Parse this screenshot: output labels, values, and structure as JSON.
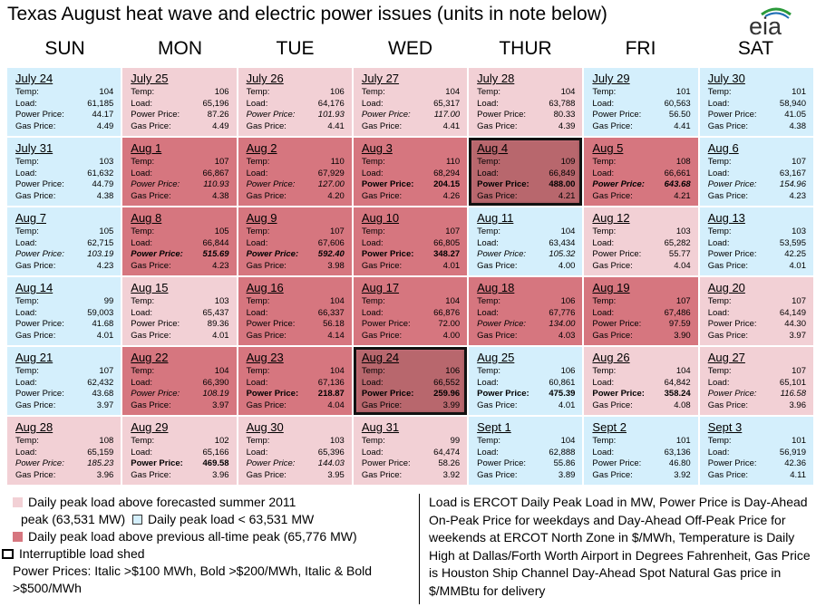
{
  "title": "Texas August heat wave and electric power issues (units in note below)",
  "logo": "eia",
  "days": [
    "SUN",
    "MON",
    "TUE",
    "WED",
    "THUR",
    "FRI",
    "SAT"
  ],
  "labels": {
    "temp": "Temp:",
    "load": "Load:",
    "power": "Power Price:",
    "gas": "Gas Price:"
  },
  "colors": {
    "below": "#d4effc",
    "above_forecast": "#f2d0d5",
    "above_record": "#d6767f",
    "load_shed": "#b8676d"
  },
  "cells": [
    {
      "date": "July 24",
      "shade": "b",
      "temp": "104",
      "load": "61,185",
      "power": "44.17",
      "pstyle": "n",
      "gas": "4.49"
    },
    {
      "date": "July 25",
      "shade": "p",
      "temp": "106",
      "load": "65,196",
      "power": "87.26",
      "pstyle": "n",
      "gas": "4.49"
    },
    {
      "date": "July 26",
      "shade": "p",
      "temp": "106",
      "load": "64,176",
      "power": "101.93",
      "pstyle": "i",
      "gas": "4.41"
    },
    {
      "date": "July 27",
      "shade": "p",
      "temp": "104",
      "load": "65,317",
      "power": "117.00",
      "pstyle": "i",
      "gas": "4.41"
    },
    {
      "date": "July 28",
      "shade": "p",
      "temp": "104",
      "load": "63,788",
      "power": "80.33",
      "pstyle": "n",
      "gas": "4.39"
    },
    {
      "date": "July 29",
      "shade": "b",
      "temp": "101",
      "load": "60,563",
      "power": "56.50",
      "pstyle": "n",
      "gas": "4.41"
    },
    {
      "date": "July 30",
      "shade": "b",
      "temp": "101",
      "load": "58,940",
      "power": "41.05",
      "pstyle": "n",
      "gas": "4.38"
    },
    {
      "date": "July 31",
      "shade": "b",
      "temp": "103",
      "load": "61,632",
      "power": "44.79",
      "pstyle": "n",
      "gas": "4.38"
    },
    {
      "date": "Aug 1",
      "shade": "r",
      "temp": "107",
      "load": "66,867",
      "power": "110.93",
      "pstyle": "i",
      "gas": "4.38"
    },
    {
      "date": "Aug 2",
      "shade": "r",
      "temp": "110",
      "load": "67,929",
      "power": "127.00",
      "pstyle": "i",
      "gas": "4.20"
    },
    {
      "date": "Aug 3",
      "shade": "r",
      "temp": "110",
      "load": "68,294",
      "power": "204.15",
      "pstyle": "bo",
      "gas": "4.26"
    },
    {
      "date": "Aug 4",
      "shade": "s",
      "temp": "109",
      "load": "66,849",
      "power": "488.00",
      "pstyle": "bo",
      "gas": "4.21"
    },
    {
      "date": "Aug 5",
      "shade": "r",
      "temp": "108",
      "load": "66,661",
      "power": "643.68",
      "pstyle": "bi",
      "gas": "4.21"
    },
    {
      "date": "Aug 6",
      "shade": "b",
      "temp": "107",
      "load": "63,167",
      "power": "154.96",
      "pstyle": "i",
      "gas": "4.23"
    },
    {
      "date": "Aug 7",
      "shade": "b",
      "temp": "105",
      "load": "62,715",
      "power": "103.19",
      "pstyle": "i",
      "gas": "4.23"
    },
    {
      "date": "Aug 8",
      "shade": "r",
      "temp": "105",
      "load": "66,844",
      "power": "515.69",
      "pstyle": "bi",
      "gas": "4.23"
    },
    {
      "date": "Aug 9",
      "shade": "r",
      "temp": "107",
      "load": "67,606",
      "power": "592.40",
      "pstyle": "bi",
      "gas": "3.98"
    },
    {
      "date": "Aug 10",
      "shade": "r",
      "temp": "107",
      "load": "66,805",
      "power": "348.27",
      "pstyle": "bo",
      "gas": "4.01"
    },
    {
      "date": "Aug 11",
      "shade": "b",
      "temp": "104",
      "load": "63,434",
      "power": "105.32",
      "pstyle": "i",
      "gas": "4.00"
    },
    {
      "date": "Aug 12",
      "shade": "p",
      "temp": "103",
      "load": "65,282",
      "power": "55.77",
      "pstyle": "n",
      "gas": "4.04"
    },
    {
      "date": "Aug 13",
      "shade": "b",
      "temp": "103",
      "load": "53,595",
      "power": "42.25",
      "pstyle": "n",
      "gas": "4.01"
    },
    {
      "date": "Aug 14",
      "shade": "b",
      "temp": "99",
      "load": "59,003",
      "power": "41.68",
      "pstyle": "n",
      "gas": "4.01"
    },
    {
      "date": "Aug 15",
      "shade": "p",
      "temp": "103",
      "load": "65,437",
      "power": "89.36",
      "pstyle": "n",
      "gas": "4.01"
    },
    {
      "date": "Aug 16",
      "shade": "r",
      "temp": "104",
      "load": "66,337",
      "power": "56.18",
      "pstyle": "n",
      "gas": "4.14"
    },
    {
      "date": "Aug 17",
      "shade": "r",
      "temp": "104",
      "load": "66,876",
      "power": "72.00",
      "pstyle": "n",
      "gas": "4.00"
    },
    {
      "date": "Aug 18",
      "shade": "r",
      "temp": "106",
      "load": "67,776",
      "power": "134.00",
      "pstyle": "i",
      "gas": "4.03"
    },
    {
      "date": "Aug 19",
      "shade": "r",
      "temp": "107",
      "load": "67,486",
      "power": "97.59",
      "pstyle": "n",
      "gas": "3.90"
    },
    {
      "date": "Aug 20",
      "shade": "p",
      "temp": "107",
      "load": "64,149",
      "power": "44.30",
      "pstyle": "n",
      "gas": "3.97"
    },
    {
      "date": "Aug 21",
      "shade": "b",
      "temp": "107",
      "load": "62,432",
      "power": "43.68",
      "pstyle": "n",
      "gas": "3.97"
    },
    {
      "date": "Aug 22",
      "shade": "r",
      "temp": "104",
      "load": "66,390",
      "power": "108.19",
      "pstyle": "i",
      "gas": "3.97"
    },
    {
      "date": "Aug 23",
      "shade": "r",
      "temp": "104",
      "load": "67,136",
      "power": "218.87",
      "pstyle": "bo",
      "gas": "4.04"
    },
    {
      "date": "Aug 24",
      "shade": "s",
      "temp": "106",
      "load": "66,552",
      "power": "259.96",
      "pstyle": "bo",
      "gas": "3.99"
    },
    {
      "date": "Aug 25",
      "shade": "b",
      "temp": "106",
      "load": "60,861",
      "power": "475.39",
      "pstyle": "bo",
      "gas": "4.01"
    },
    {
      "date": "Aug 26",
      "shade": "p",
      "temp": "104",
      "load": "64,842",
      "power": "358.24",
      "pstyle": "bo",
      "gas": "4.08"
    },
    {
      "date": "Aug 27",
      "shade": "p",
      "temp": "107",
      "load": "65,101",
      "power": "116.58",
      "pstyle": "i",
      "gas": "3.96"
    },
    {
      "date": "Aug 28",
      "shade": "p",
      "temp": "108",
      "load": "65,159",
      "power": "185.23",
      "pstyle": "i",
      "gas": "3.96"
    },
    {
      "date": "Aug 29",
      "shade": "p",
      "temp": "102",
      "load": "65,166",
      "power": "469.58",
      "pstyle": "bo",
      "gas": "3.96"
    },
    {
      "date": "Aug 30",
      "shade": "p",
      "temp": "103",
      "load": "65,396",
      "power": "144.03",
      "pstyle": "i",
      "gas": "3.95"
    },
    {
      "date": "Aug 31",
      "shade": "p",
      "temp": "99",
      "load": "64,474",
      "power": "58.26",
      "pstyle": "n",
      "gas": "3.92"
    },
    {
      "date": "Sept 1",
      "shade": "b",
      "temp": "104",
      "load": "62,888",
      "power": "55.86",
      "pstyle": "n",
      "gas": "3.89"
    },
    {
      "date": "Sept 2",
      "shade": "b",
      "temp": "101",
      "load": "63,136",
      "power": "46.80",
      "pstyle": "n",
      "gas": "3.92"
    },
    {
      "date": "Sept 3",
      "shade": "b",
      "temp": "101",
      "load": "56,919",
      "power": "42.36",
      "pstyle": "n",
      "gas": "4.11"
    }
  ],
  "legend": {
    "above_forecast": "Daily peak load above forecasted summer 2011",
    "above_forecast_2": "peak (63,531 MW)",
    "below": "Daily peak load < 63,531 MW",
    "above_record": "Daily peak load above previous all-time peak (65,776 MW)",
    "load_shed": "Interruptible load shed",
    "prices": "Power Prices:  Italic >$100 MWh, Bold >$200/MWh, Italic & Bold >$500/MWh"
  },
  "note": "Load is ERCOT Daily Peak Load in MW, Power Price is Day-Ahead On-Peak Price for weekdays and Day-Ahead Off-Peak Price for weekends at ERCOT North Zone in $/MWh, Temperature is Daily High at Dallas/Forth Worth Airport in Degrees Fahrenheit,  Gas Price is Houston Ship Channel Day-Ahead Spot Natural Gas price in $/MMBtu for delivery"
}
